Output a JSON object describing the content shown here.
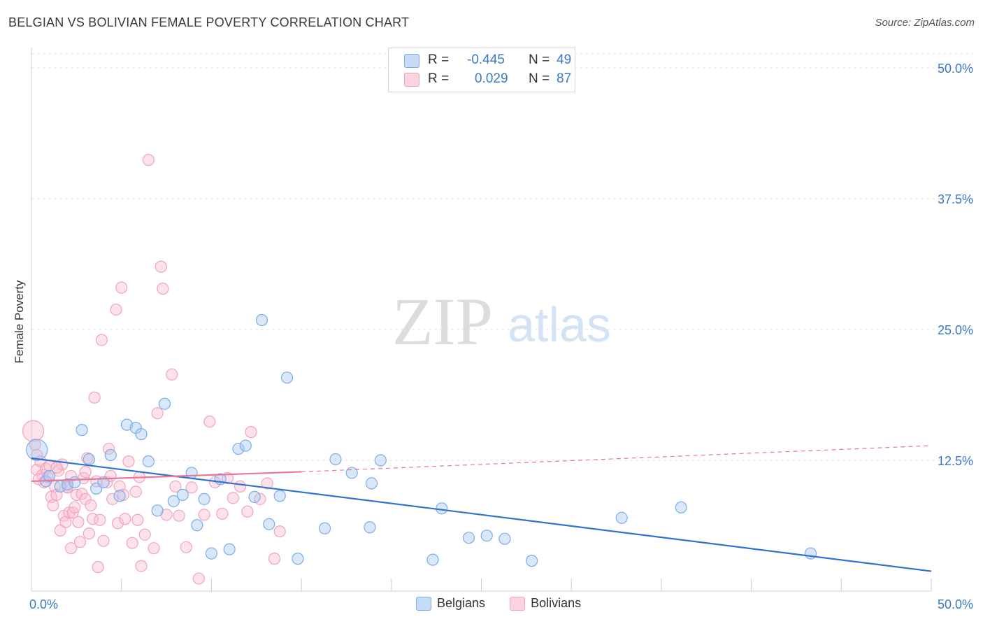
{
  "title": "BELGIAN VS BOLIVIAN FEMALE POVERTY CORRELATION CHART",
  "source": "Source: ZipAtlas.com",
  "watermark": {
    "zip": "ZIP",
    "atlas": "atlas"
  },
  "legend_top": [
    {
      "r_label": "R =",
      "r_value": "-0.445",
      "n_label": "N =",
      "n_value": "49",
      "color": "#7aaee8"
    },
    {
      "r_label": "R =",
      "r_value": "0.029",
      "n_label": "N =",
      "n_value": "87",
      "color": "#f2a3bd"
    }
  ],
  "chart_data": {
    "type": "scatter",
    "title": "BELGIAN VS BOLIVIAN FEMALE POVERTY CORRELATION CHART",
    "ylabel": "Female Poverty",
    "xlabel": "",
    "xlim": [
      0,
      50
    ],
    "ylim": [
      0,
      50
    ],
    "x_tick_labels": [
      "0.0%",
      "50.0%"
    ],
    "y_tick_labels": [
      "12.5%",
      "25.0%",
      "37.5%",
      "50.0%"
    ],
    "y_ticks": [
      12.5,
      25.0,
      37.5,
      50.0
    ],
    "grid": "horizontal dashed",
    "legend_position": "bottom",
    "series": [
      {
        "name": "Belgians",
        "color": "#7aaee8",
        "line_color": "#2f72d1",
        "trend": {
          "x0": 0,
          "y0": 12.7,
          "x1": 50,
          "y1": 1.9,
          "dashed_from": null
        },
        "points": [
          [
            0.3,
            13.5
          ],
          [
            0.8,
            10.5
          ],
          [
            1.0,
            11.0
          ],
          [
            1.6,
            10.0
          ],
          [
            2.0,
            10.2
          ],
          [
            2.4,
            10.4
          ],
          [
            2.8,
            15.4
          ],
          [
            3.2,
            12.6
          ],
          [
            3.6,
            9.8
          ],
          [
            4.0,
            10.4
          ],
          [
            4.4,
            13.0
          ],
          [
            4.9,
            9.1
          ],
          [
            5.3,
            15.9
          ],
          [
            5.8,
            15.6
          ],
          [
            6.1,
            15.0
          ],
          [
            6.5,
            12.4
          ],
          [
            7.0,
            7.7
          ],
          [
            7.4,
            17.9
          ],
          [
            7.9,
            8.6
          ],
          [
            8.4,
            9.2
          ],
          [
            8.9,
            11.3
          ],
          [
            9.2,
            6.3
          ],
          [
            9.6,
            8.8
          ],
          [
            10.0,
            3.6
          ],
          [
            10.5,
            10.7
          ],
          [
            11.0,
            4.0
          ],
          [
            11.5,
            13.6
          ],
          [
            11.9,
            13.9
          ],
          [
            12.4,
            9.0
          ],
          [
            12.8,
            25.9
          ],
          [
            13.2,
            6.4
          ],
          [
            13.8,
            9.1
          ],
          [
            14.2,
            20.4
          ],
          [
            14.8,
            3.1
          ],
          [
            16.3,
            6.0
          ],
          [
            16.9,
            12.6
          ],
          [
            17.8,
            11.3
          ],
          [
            18.8,
            6.1
          ],
          [
            18.9,
            10.3
          ],
          [
            19.4,
            12.5
          ],
          [
            22.3,
            3.0
          ],
          [
            22.8,
            7.9
          ],
          [
            24.3,
            5.1
          ],
          [
            25.3,
            5.3
          ],
          [
            26.3,
            5.0
          ],
          [
            27.8,
            2.9
          ],
          [
            32.8,
            7.0
          ],
          [
            36.1,
            8.0
          ],
          [
            43.3,
            3.6
          ]
        ]
      },
      {
        "name": "Bolivians",
        "color": "#f2a3bd",
        "line_color": "#e8759a",
        "trend": {
          "x0": 0,
          "y0": 10.5,
          "x1": 15,
          "y1": 11.4,
          "dashed_to_x": 50,
          "dashed_to_y": 13.9
        },
        "points": [
          [
            0.1,
            15.3
          ],
          [
            0.2,
            14.0
          ],
          [
            0.3,
            13.0
          ],
          [
            0.3,
            11.6
          ],
          [
            0.5,
            12.4
          ],
          [
            0.6,
            11.1
          ],
          [
            0.7,
            10.4
          ],
          [
            0.8,
            11.7
          ],
          [
            0.9,
            10.9
          ],
          [
            1.0,
            12.0
          ],
          [
            1.1,
            9.0
          ],
          [
            1.2,
            8.2
          ],
          [
            1.3,
            10.0
          ],
          [
            1.4,
            9.2
          ],
          [
            1.5,
            11.5
          ],
          [
            1.6,
            5.8
          ],
          [
            1.7,
            12.1
          ],
          [
            1.8,
            7.2
          ],
          [
            1.9,
            6.6
          ],
          [
            2.0,
            10.0
          ],
          [
            2.1,
            7.5
          ],
          [
            2.2,
            11.0
          ],
          [
            2.2,
            4.1
          ],
          [
            2.3,
            7.5
          ],
          [
            2.4,
            8.0
          ],
          [
            2.5,
            9.2
          ],
          [
            2.6,
            6.6
          ],
          [
            2.7,
            4.7
          ],
          [
            2.8,
            9.3
          ],
          [
            2.9,
            10.8
          ],
          [
            3.0,
            8.8
          ],
          [
            3.0,
            11.4
          ],
          [
            3.1,
            12.7
          ],
          [
            3.2,
            5.5
          ],
          [
            3.3,
            8.2
          ],
          [
            3.4,
            6.9
          ],
          [
            3.5,
            18.5
          ],
          [
            3.6,
            10.5
          ],
          [
            3.7,
            2.3
          ],
          [
            3.8,
            6.8
          ],
          [
            3.9,
            24.0
          ],
          [
            4.0,
            4.8
          ],
          [
            4.2,
            10.4
          ],
          [
            4.3,
            13.6
          ],
          [
            4.4,
            11.0
          ],
          [
            4.5,
            8.8
          ],
          [
            4.7,
            26.9
          ],
          [
            4.8,
            6.5
          ],
          [
            4.9,
            10.0
          ],
          [
            5.0,
            29.0
          ],
          [
            5.1,
            9.2
          ],
          [
            5.2,
            6.9
          ],
          [
            5.4,
            12.4
          ],
          [
            5.6,
            4.6
          ],
          [
            5.8,
            9.5
          ],
          [
            5.9,
            6.8
          ],
          [
            6.0,
            10.9
          ],
          [
            6.1,
            2.4
          ],
          [
            6.3,
            5.4
          ],
          [
            6.5,
            41.2
          ],
          [
            6.8,
            4.1
          ],
          [
            7.0,
            17.0
          ],
          [
            7.2,
            31.0
          ],
          [
            7.3,
            28.9
          ],
          [
            7.5,
            7.3
          ],
          [
            7.8,
            20.7
          ],
          [
            8.0,
            10.0
          ],
          [
            8.2,
            7.2
          ],
          [
            8.6,
            4.2
          ],
          [
            8.9,
            9.9
          ],
          [
            9.3,
            1.2
          ],
          [
            9.6,
            7.3
          ],
          [
            9.9,
            16.2
          ],
          [
            10.2,
            10.4
          ],
          [
            10.6,
            7.4
          ],
          [
            10.9,
            10.8
          ],
          [
            11.2,
            8.9
          ],
          [
            11.6,
            10.0
          ],
          [
            12.0,
            7.6
          ],
          [
            12.2,
            15.2
          ],
          [
            12.7,
            8.8
          ],
          [
            13.1,
            10.3
          ],
          [
            13.5,
            3.1
          ],
          [
            13.8,
            5.7
          ],
          [
            0.4,
            10.7
          ],
          [
            1.4,
            11.8
          ],
          [
            2.0,
            9.9
          ]
        ]
      }
    ]
  },
  "bottom_legend": [
    {
      "label": "Belgians",
      "color": "#7aaee8"
    },
    {
      "label": "Bolivians",
      "color": "#f2a3bd"
    }
  ]
}
